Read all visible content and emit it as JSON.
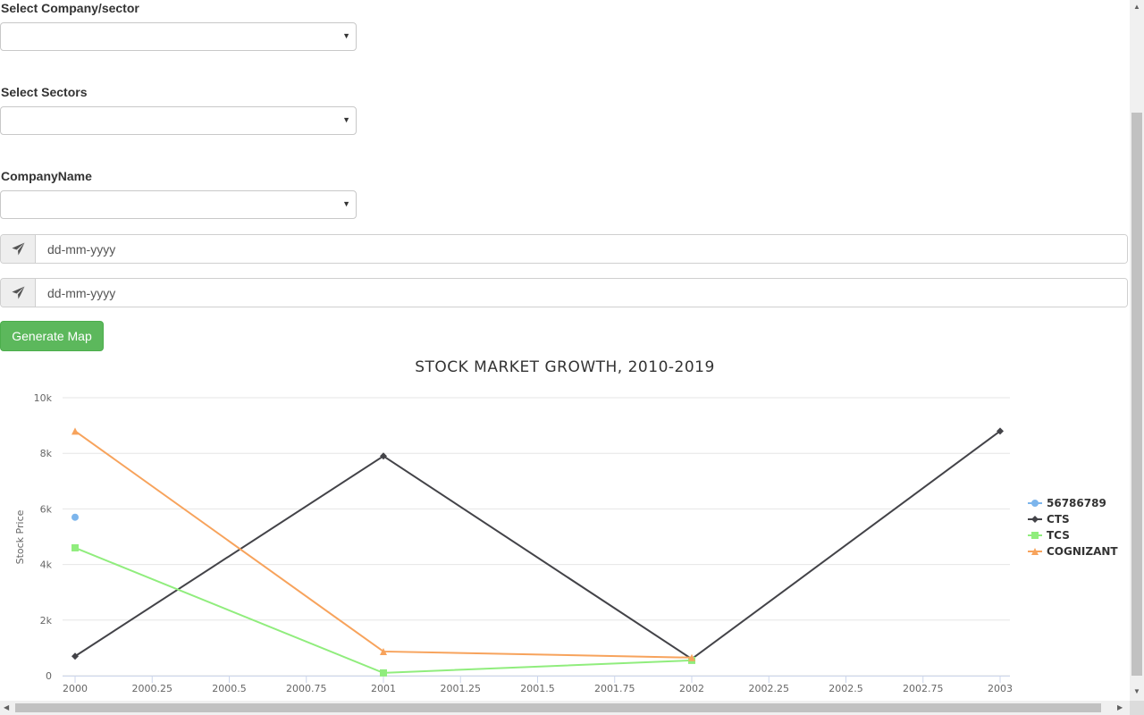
{
  "form": {
    "company_sector_label": "Select Company/sector",
    "company_sector_value": "",
    "sectors_label": "Select Sectors",
    "sectors_value": "",
    "company_name_label": "CompanyName",
    "company_name_value": "",
    "from_date_placeholder": "dd-mm-yyyy",
    "to_date_placeholder": "dd-mm-yyyy",
    "send_icon": "paper-plane-icon",
    "generate_button_label": "Generate Map",
    "generate_button_color": "#5cb85c"
  },
  "chart_data": {
    "type": "line",
    "title": "STOCK MARKET GROWTH, 2010-2019",
    "ylabel": "Stock Price",
    "xlabel": "",
    "xlim": [
      2000,
      2003
    ],
    "ylim": [
      0,
      10000
    ],
    "x_ticks": [
      2000,
      2000.25,
      2000.5,
      2000.75,
      2001,
      2001.25,
      2001.5,
      2001.75,
      2002,
      2002.25,
      2002.5,
      2002.75,
      2003
    ],
    "x_tick_labels": [
      "2000",
      "2000.25",
      "2000.5",
      "2000.75",
      "2001",
      "2001.25",
      "2001.5",
      "2001.75",
      "2002",
      "2002.25",
      "2002.5",
      "2002.75",
      "2003"
    ],
    "y_ticks": [
      0,
      2000,
      4000,
      6000,
      8000,
      10000
    ],
    "y_tick_labels": [
      "0",
      "2k",
      "4k",
      "6k",
      "8k",
      "10k"
    ],
    "grid": "horizontal",
    "legend_position": "right",
    "series": [
      {
        "name": "56786789",
        "color": "#7cb5ec",
        "marker": "circle",
        "points": [
          [
            2000,
            5700
          ]
        ]
      },
      {
        "name": "CTS",
        "color": "#434348",
        "marker": "diamond",
        "points": [
          [
            2000,
            700
          ],
          [
            2001,
            7900
          ],
          [
            2002,
            600
          ],
          [
            2003,
            8800
          ]
        ]
      },
      {
        "name": "TCS",
        "color": "#90ed7d",
        "marker": "square",
        "points": [
          [
            2000,
            4600
          ],
          [
            2001,
            100
          ],
          [
            2002,
            550
          ]
        ]
      },
      {
        "name": "COGNIZANT",
        "color": "#f7a35c",
        "marker": "triangle",
        "points": [
          [
            2000,
            8800
          ],
          [
            2001,
            870
          ],
          [
            2002,
            650
          ]
        ]
      }
    ]
  }
}
